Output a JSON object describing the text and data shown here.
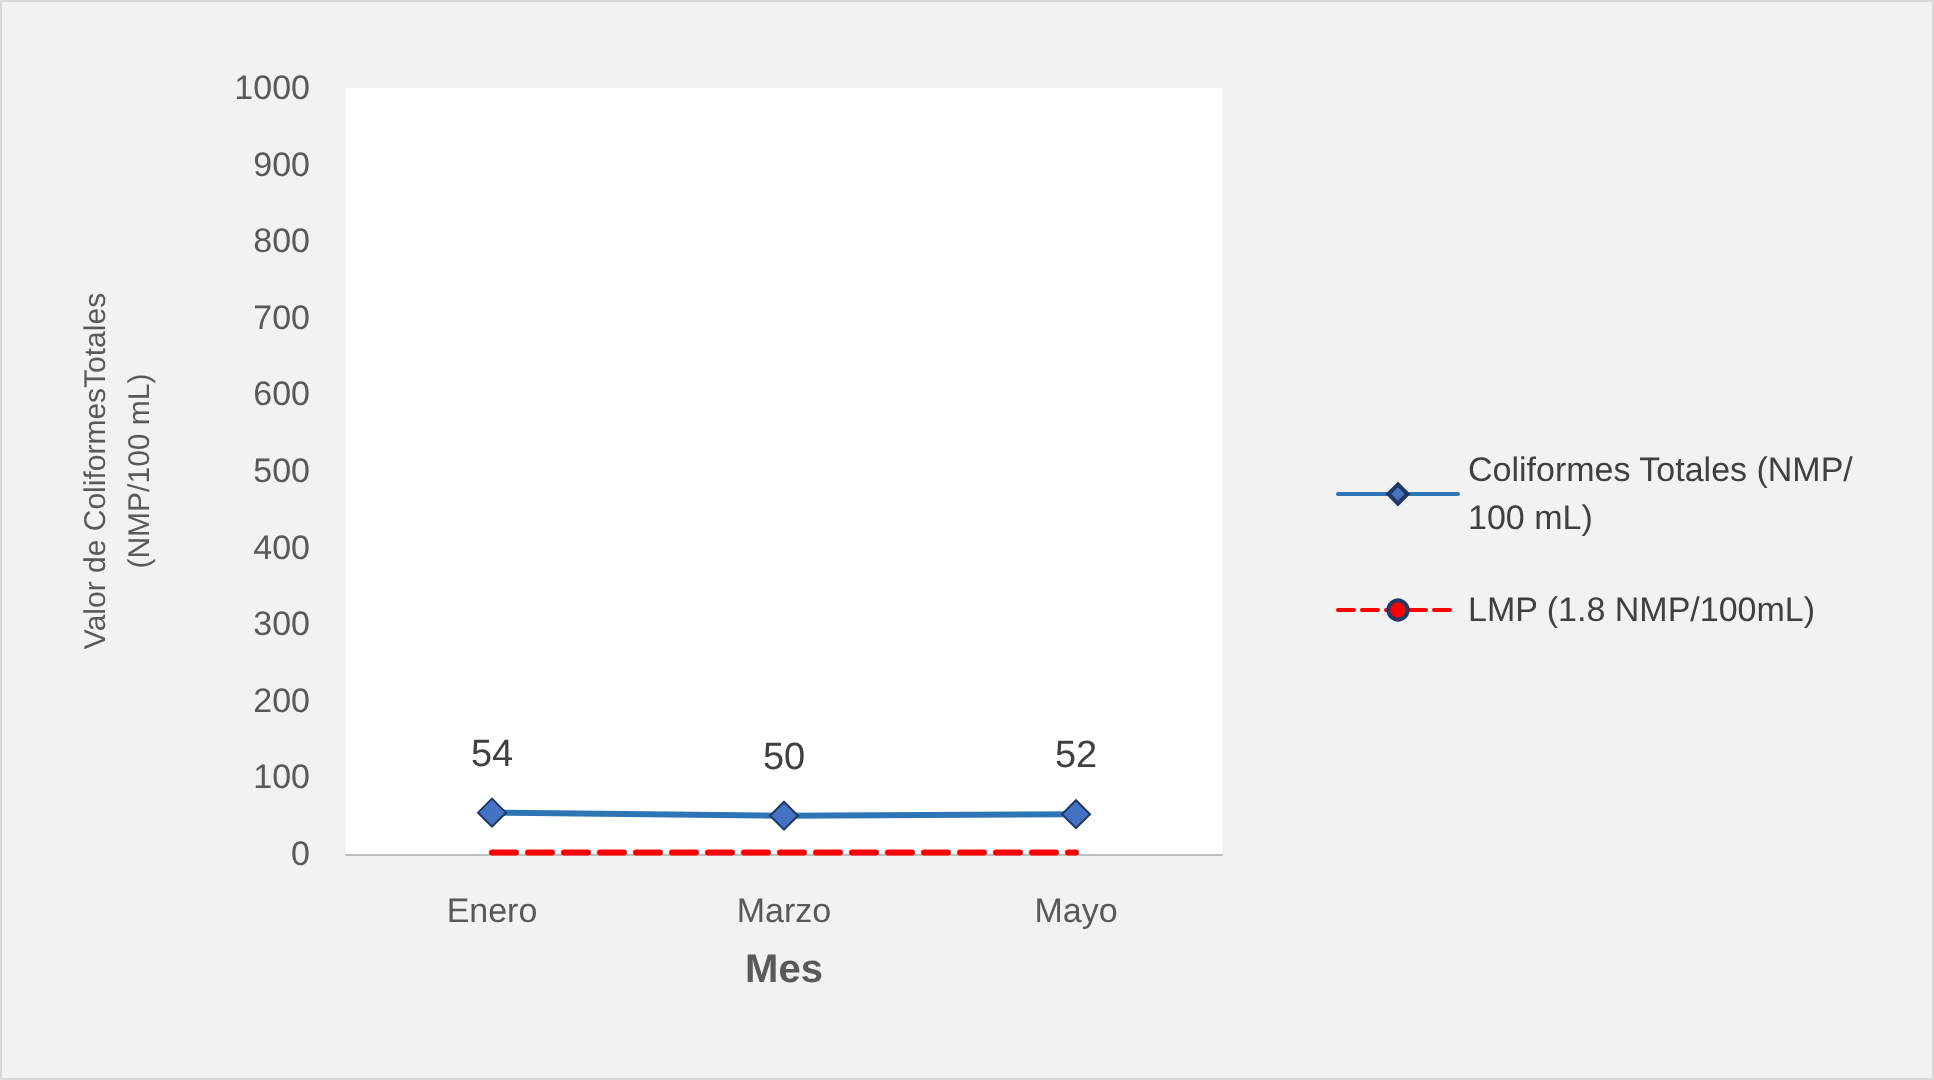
{
  "chart_data": {
    "type": "line",
    "xlabel": "Mes",
    "ylabel": "Valor de ColiformesTotales\n(NMP/100 mL)",
    "categories": [
      "Enero",
      "Marzo",
      "Mayo"
    ],
    "series": [
      {
        "name": "Coliformes Totales (NMP/100 mL)",
        "color": "#2e75b6",
        "values": [
          54,
          50,
          52
        ],
        "marker": "diamond",
        "line_style": "solid",
        "value_labels": [
          "54",
          "50",
          "52"
        ]
      },
      {
        "name": "LMP (1.8 NMP/100mL)",
        "color": "#ff0000",
        "values": [
          1.8,
          1.8,
          1.8
        ],
        "marker": "none",
        "line_style": "dashed"
      }
    ],
    "ylim": [
      0,
      1000
    ],
    "yticks": [
      0,
      100,
      200,
      300,
      400,
      500,
      600,
      700,
      800,
      900,
      1000
    ],
    "legend": "right"
  }
}
